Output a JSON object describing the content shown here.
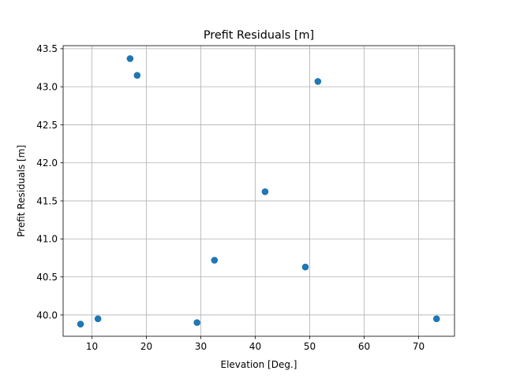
{
  "chart_data": {
    "type": "scatter",
    "title": "Prefit Residuals [m]",
    "xlabel": "Elevation [Deg.]",
    "ylabel": "Prefit Residuals [m]",
    "xlim": [
      4.7,
      76.6
    ],
    "ylim": [
      39.72,
      43.54
    ],
    "xticks": [
      10,
      20,
      30,
      40,
      50,
      60,
      70
    ],
    "yticks": [
      40.0,
      40.5,
      41.0,
      41.5,
      42.0,
      42.5,
      43.0,
      43.5
    ],
    "grid": true,
    "legend": "none",
    "marker_color": "#1f77b4",
    "points": [
      {
        "x": 7.9,
        "y": 39.88
      },
      {
        "x": 11.1,
        "y": 39.95
      },
      {
        "x": 17.0,
        "y": 43.37
      },
      {
        "x": 18.3,
        "y": 43.15
      },
      {
        "x": 29.3,
        "y": 39.9
      },
      {
        "x": 32.5,
        "y": 40.72
      },
      {
        "x": 41.8,
        "y": 41.62
      },
      {
        "x": 49.2,
        "y": 40.63
      },
      {
        "x": 51.5,
        "y": 43.07
      },
      {
        "x": 73.3,
        "y": 39.95
      }
    ]
  }
}
